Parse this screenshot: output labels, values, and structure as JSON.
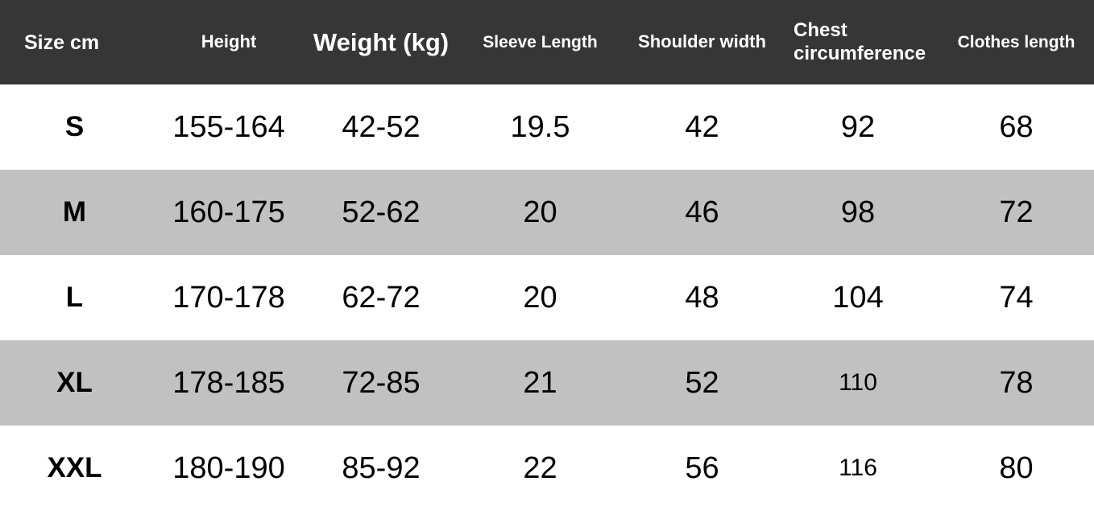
{
  "table": {
    "columns": [
      {
        "label": "Size cm"
      },
      {
        "label": "Height"
      },
      {
        "label": "Weight (kg)"
      },
      {
        "label": "Sleeve Length"
      },
      {
        "label": "Shoulder width"
      },
      {
        "label": "Chest circumference"
      },
      {
        "label": "Clothes length"
      }
    ],
    "rows": [
      {
        "size": "S",
        "height": "155-164",
        "weight": "42-52",
        "sleeve_length": "19.5",
        "shoulder_width": "42",
        "chest_circumference": "92",
        "clothes_length": "68"
      },
      {
        "size": "M",
        "height": "160-175",
        "weight": "52-62",
        "sleeve_length": "20",
        "shoulder_width": "46",
        "chest_circumference": "98",
        "clothes_length": "72"
      },
      {
        "size": "L",
        "height": "170-178",
        "weight": "62-72",
        "sleeve_length": "20",
        "shoulder_width": "48",
        "chest_circumference": "104",
        "clothes_length": "74"
      },
      {
        "size": "XL",
        "height": "178-185",
        "weight": "72-85",
        "sleeve_length": "21",
        "shoulder_width": "52",
        "chest_circumference": "110",
        "clothes_length": "78"
      },
      {
        "size": "XXL",
        "height": "180-190",
        "weight": "85-92",
        "sleeve_length": "22",
        "shoulder_width": "56",
        "chest_circumference": "116",
        "clothes_length": "80"
      }
    ]
  },
  "colors": {
    "header_bg": "#363636",
    "header_text": "#ffffff",
    "row_bg": "#ffffff",
    "row_alt_bg": "#c1c1c1",
    "cell_text": "#000000"
  }
}
